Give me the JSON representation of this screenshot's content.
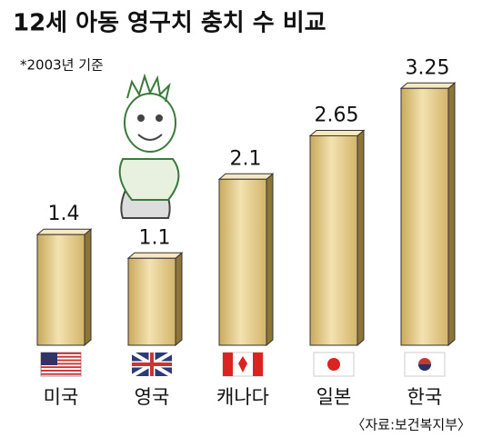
{
  "chart_data": {
    "type": "bar",
    "title": "12세 아동 영구치 충치 수 비교",
    "subtitle": "*2003년 기준",
    "source": "〈자료:보건복지부〉",
    "categories": [
      "미국",
      "영국",
      "캐나다",
      "일본",
      "한국"
    ],
    "values": [
      1.4,
      1.1,
      2.1,
      2.65,
      3.25
    ],
    "color": "#e2c882"
  }
}
